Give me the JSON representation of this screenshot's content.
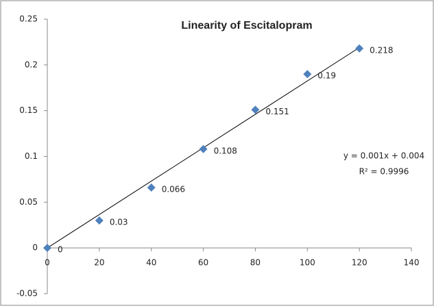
{
  "chart_data": {
    "type": "scatter",
    "title": "Linearity of Escitalopram",
    "x": [
      0,
      20,
      40,
      60,
      80,
      100,
      120
    ],
    "values": [
      0,
      0.03,
      0.066,
      0.108,
      0.151,
      0.19,
      0.218
    ],
    "color": "#4f81bd",
    "trendline": {
      "x": [
        0,
        120
      ],
      "values": [
        0,
        0.219
      ],
      "color": "#000000"
    },
    "annotations": [
      "y = 0.001x + 0.004",
      "R² = 0.9996"
    ],
    "xlim": [
      0,
      140
    ],
    "xticks": [
      0,
      20,
      40,
      60,
      80,
      100,
      120,
      140
    ],
    "ylim": [
      -0.05,
      0.25
    ],
    "yticks": [
      -0.05,
      0,
      0.05,
      0.1,
      0.15,
      0.2,
      0.25
    ],
    "grid": false
  }
}
